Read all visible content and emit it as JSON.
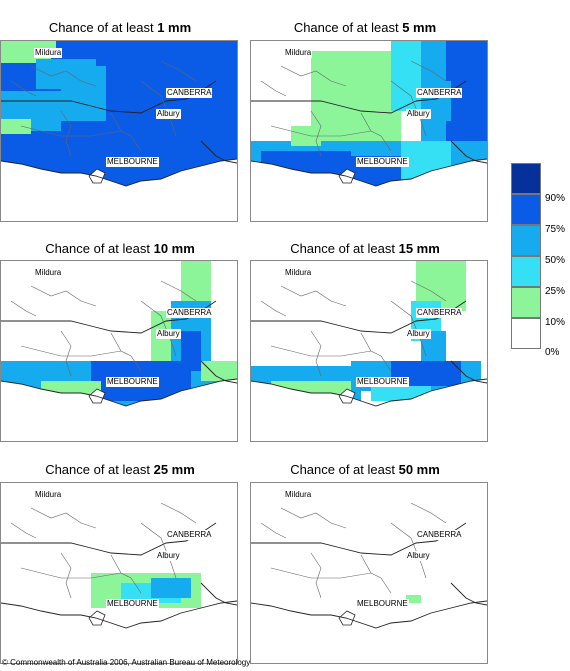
{
  "maps": [
    {
      "id": "1mm",
      "title_prefix": "Chance of at least ",
      "amount": "1 mm",
      "labels": {
        "mildura": "Mildura",
        "canberra": "CANBERRA",
        "albury": "Albury",
        "melbourne": "MELBOURNE"
      }
    },
    {
      "id": "5mm",
      "title_prefix": "Chance of at least ",
      "amount": "5 mm",
      "labels": {
        "mildura": "Mildura",
        "canberra": "CANBERRA",
        "albury": "Albury",
        "melbourne": "MELBOURNE"
      }
    },
    {
      "id": "10mm",
      "title_prefix": "Chance of at least ",
      "amount": "10 mm",
      "labels": {
        "mildura": "Mildura",
        "canberra": "CANBERRA",
        "albury": "Albury",
        "melbourne": "MELBOURNE"
      }
    },
    {
      "id": "15mm",
      "title_prefix": "Chance of at least ",
      "amount": "15 mm",
      "labels": {
        "mildura": "Mildura",
        "canberra": "CANBERRA",
        "albury": "Albury",
        "melbourne": "MELBOURNE"
      }
    },
    {
      "id": "25mm",
      "title_prefix": "Chance of at least ",
      "amount": "25 mm",
      "labels": {
        "mildura": "Mildura",
        "canberra": "CANBERRA",
        "albury": "Albury",
        "melbourne": "MELBOURNE"
      }
    },
    {
      "id": "50mm",
      "title_prefix": "Chance of at least ",
      "amount": "50 mm",
      "labels": {
        "mildura": "Mildura",
        "canberra": "CANBERRA",
        "albury": "Albury",
        "melbourne": "MELBOURNE"
      }
    }
  ],
  "legend": {
    "labels": [
      "90%",
      "75%",
      "50%",
      "25%",
      "10%",
      "0%"
    ],
    "colors": [
      "#06309a",
      "#0a5be6",
      "#16aaef",
      "#35e0f4",
      "#8cf59a",
      "#ffffff"
    ]
  },
  "copyright": "© Commonwealth of Australia 2006, Australian Bureau of Meteorology"
}
